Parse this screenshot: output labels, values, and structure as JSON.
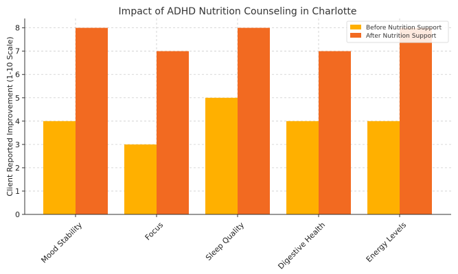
{
  "chart_data": {
    "type": "bar",
    "title": "Impact of ADHD Nutrition Counseling in Charlotte",
    "xlabel": "",
    "ylabel": "Client Reported Improvement (1-10 Scale)",
    "categories": [
      "Mood Stability",
      "Focus",
      "Sleep Quality",
      "Digestive Health",
      "Energy Levels"
    ],
    "series": [
      {
        "name": "Before Nutrition Support",
        "values": [
          4,
          3,
          5,
          4,
          4
        ],
        "color": "#FFB000"
      },
      {
        "name": "After Nutrition Support",
        "values": [
          8,
          7,
          8,
          7,
          8
        ],
        "color": "#F26A21"
      }
    ],
    "ylim": [
      0,
      8.4
    ],
    "yticks": [
      0,
      1,
      2,
      3,
      4,
      5,
      6,
      7,
      8
    ],
    "grid": true,
    "legend_position": "top-right"
  }
}
